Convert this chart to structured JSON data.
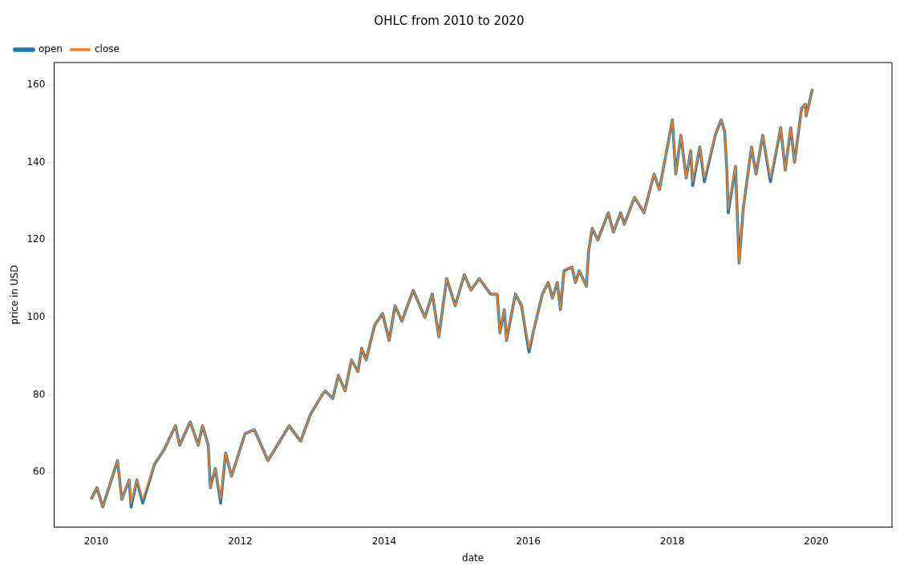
{
  "chart_data": {
    "type": "line",
    "title": "OHLC from 2010 to 2020",
    "xlabel": "date",
    "ylabel": "price in USD",
    "x": [
      "2009-12-06",
      "2010-01-05",
      "2010-02-03",
      "2010-04-19",
      "2010-05-11",
      "2010-06-17",
      "2010-06-27",
      "2010-07-26",
      "2010-08-25",
      "2010-10-23",
      "2010-12-13",
      "2011-02-07",
      "2011-02-28",
      "2011-04-23",
      "2011-06-02",
      "2011-06-24",
      "2011-07-23",
      "2011-08-03",
      "2011-08-28",
      "2011-09-24",
      "2011-10-19",
      "2011-11-18",
      "2012-01-26",
      "2012-03-13",
      "2012-04-08",
      "2012-05-21",
      "2012-07-08",
      "2012-09-06",
      "2012-11-03",
      "2012-12-24",
      "2013-02-21",
      "2013-03-09",
      "2013-04-15",
      "2013-05-14",
      "2013-06-17",
      "2013-07-19",
      "2013-08-21",
      "2013-09-09",
      "2013-10-01",
      "2013-11-14",
      "2013-12-24",
      "2014-01-26",
      "2014-02-25",
      "2014-04-01",
      "2014-05-28",
      "2014-07-26",
      "2014-09-02",
      "2014-10-05",
      "2014-11-14",
      "2014-12-27",
      "2015-02-11",
      "2015-03-17",
      "2015-04-28",
      "2015-06-24",
      "2015-07-28",
      "2015-08-11",
      "2015-09-02",
      "2015-09-13",
      "2015-10-28",
      "2015-11-28",
      "2016-01-05",
      "2016-01-26",
      "2016-03-13",
      "2016-04-12",
      "2016-05-03",
      "2016-05-28",
      "2016-06-13",
      "2016-07-01",
      "2016-08-11",
      "2016-08-28",
      "2016-09-17",
      "2016-10-23",
      "2016-11-03",
      "2016-11-21",
      "2016-12-20",
      "2017-02-11",
      "2017-03-09",
      "2017-04-15",
      "2017-05-03",
      "2017-06-24",
      "2017-08-11",
      "2017-10-01",
      "2017-10-28",
      "2018-01-02",
      "2018-01-19",
      "2018-02-14",
      "2018-03-13",
      "2018-04-05",
      "2018-04-15",
      "2018-05-21",
      "2018-06-13",
      "2018-08-07",
      "2018-09-06",
      "2018-09-24",
      "2018-10-05",
      "2018-10-12",
      "2018-11-18",
      "2018-12-06",
      "2018-12-27",
      "2019-02-07",
      "2019-03-02",
      "2019-04-05",
      "2019-05-14",
      "2019-07-05",
      "2019-07-28",
      "2019-08-25",
      "2019-09-13",
      "2019-10-19",
      "2019-11-07",
      "2019-11-11",
      "2019-12-13"
    ],
    "series": [
      {
        "name": "open",
        "color": "#1f77b4",
        "values": [
          53,
          56,
          51,
          63,
          53,
          58,
          51,
          58,
          52,
          62,
          66,
          72,
          67,
          73,
          67,
          72,
          67,
          56,
          61,
          52,
          65,
          59,
          70,
          71,
          68,
          63,
          67,
          72,
          68,
          75,
          80,
          81,
          79,
          85,
          81,
          89,
          86,
          92,
          89,
          98,
          101,
          94,
          103,
          99,
          107,
          100,
          106,
          95,
          110,
          103,
          111,
          107,
          110,
          106,
          106,
          96,
          102,
          94,
          106,
          103,
          91,
          96,
          106,
          109,
          105,
          109,
          102,
          112,
          113,
          109,
          112,
          108,
          117,
          123,
          120,
          127,
          122,
          127,
          124,
          131,
          127,
          137,
          133,
          151,
          137,
          147,
          136,
          143,
          134,
          144,
          135,
          147,
          151,
          148,
          138,
          127,
          139,
          114,
          128,
          144,
          137,
          147,
          135,
          149,
          138,
          149,
          140,
          154,
          155,
          152,
          159
        ]
      },
      {
        "name": "close",
        "color": "#ff7f0e",
        "values": [
          53,
          56,
          51,
          63,
          53,
          58,
          52,
          58,
          53,
          62,
          66,
          72,
          67,
          73,
          67,
          72,
          67,
          56,
          61,
          53,
          65,
          59,
          70,
          71,
          68,
          63,
          67,
          72,
          68,
          75,
          80,
          81,
          79,
          85,
          81,
          89,
          86,
          92,
          89,
          98,
          101,
          94,
          103,
          99,
          107,
          100,
          106,
          95,
          110,
          103,
          111,
          107,
          110,
          106,
          106,
          96,
          102,
          94,
          106,
          103,
          92,
          96,
          106,
          109,
          105,
          109,
          102,
          112,
          113,
          109,
          112,
          108,
          117,
          123,
          120,
          127,
          122,
          127,
          124,
          131,
          127,
          137,
          133,
          151,
          137,
          147,
          136,
          143,
          135,
          144,
          136,
          147,
          151,
          148,
          138,
          128,
          139,
          114,
          128,
          144,
          137,
          147,
          136,
          149,
          138,
          149,
          140,
          154,
          155,
          152,
          159
        ]
      }
    ],
    "xlim": [
      "2009-06-01",
      "2021-01-20"
    ],
    "xticks": [
      "2010",
      "2012",
      "2014",
      "2016",
      "2018",
      "2020"
    ],
    "ylim": [
      45.9,
      165.8
    ],
    "yticks": [
      60,
      80,
      100,
      120,
      140,
      160
    ],
    "grid": false,
    "legend": "top left",
    "marker": "none",
    "line_style": "solid"
  }
}
